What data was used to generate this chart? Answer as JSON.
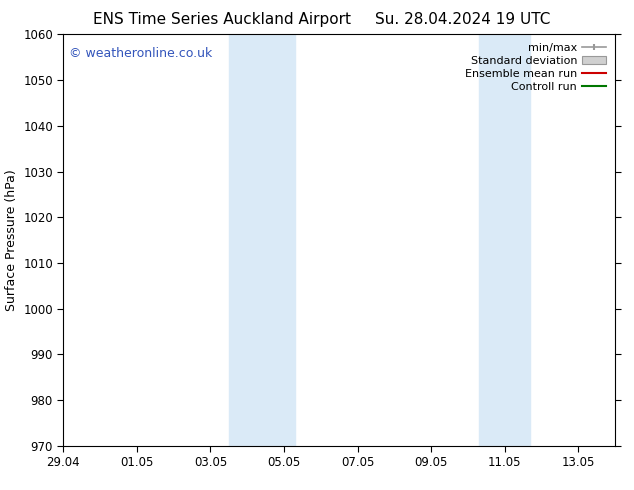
{
  "title_left": "ENS Time Series Auckland Airport",
  "title_right": "Su. 28.04.2024 19 UTC",
  "ylabel": "Surface Pressure (hPa)",
  "ylim": [
    970,
    1060
  ],
  "yticks": [
    970,
    980,
    990,
    1000,
    1010,
    1020,
    1030,
    1040,
    1050,
    1060
  ],
  "xlim_start": 0,
  "xlim_end": 15,
  "xtick_labels": [
    "29.04",
    "01.05",
    "03.05",
    "05.05",
    "07.05",
    "09.05",
    "11.05",
    "13.05"
  ],
  "xtick_positions": [
    0,
    2,
    4,
    6,
    8,
    10,
    12,
    14
  ],
  "shaded_bands": [
    {
      "x_start": 4.5,
      "x_end": 6.3
    },
    {
      "x_start": 11.3,
      "x_end": 12.7
    }
  ],
  "shaded_color": "#daeaf7",
  "background_color": "#ffffff",
  "watermark_text": "© weatheronline.co.uk",
  "watermark_color": "#3355bb",
  "border_color": "#000000",
  "title_fontsize": 11,
  "axis_fontsize": 8.5,
  "label_fontsize": 9,
  "legend_fontsize": 8
}
